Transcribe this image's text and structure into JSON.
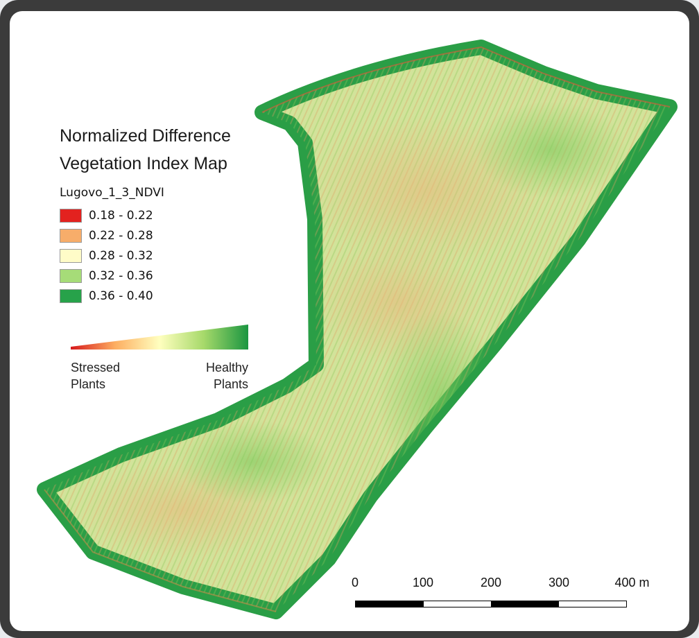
{
  "map": {
    "title_line1": "Normalized Difference",
    "title_line2": "Vegetation Index Map",
    "layer_name": "Lugovo_1_3_NDVI",
    "classes": [
      {
        "label": "0.18 - 0.22",
        "color": "#e3221f"
      },
      {
        "label": "0.22 - 0.28",
        "color": "#f7ad6a"
      },
      {
        "label": "0.28 - 0.32",
        "color": "#fffcc8"
      },
      {
        "label": "0.32 - 0.36",
        "color": "#a6dc78"
      },
      {
        "label": "0.36 - 0.40",
        "color": "#27a24a"
      }
    ],
    "ramp": {
      "left_label_line1": "Stressed",
      "left_label_line2": "Plants",
      "right_label_line1": "Healthy",
      "right_label_line2": "Plants",
      "colors": [
        "#d7191c",
        "#fdae61",
        "#ffffbf",
        "#a6d96a",
        "#1a9641"
      ]
    },
    "scale_bar": {
      "ticks": [
        "0",
        "100",
        "200",
        "300",
        "400 m"
      ]
    }
  }
}
